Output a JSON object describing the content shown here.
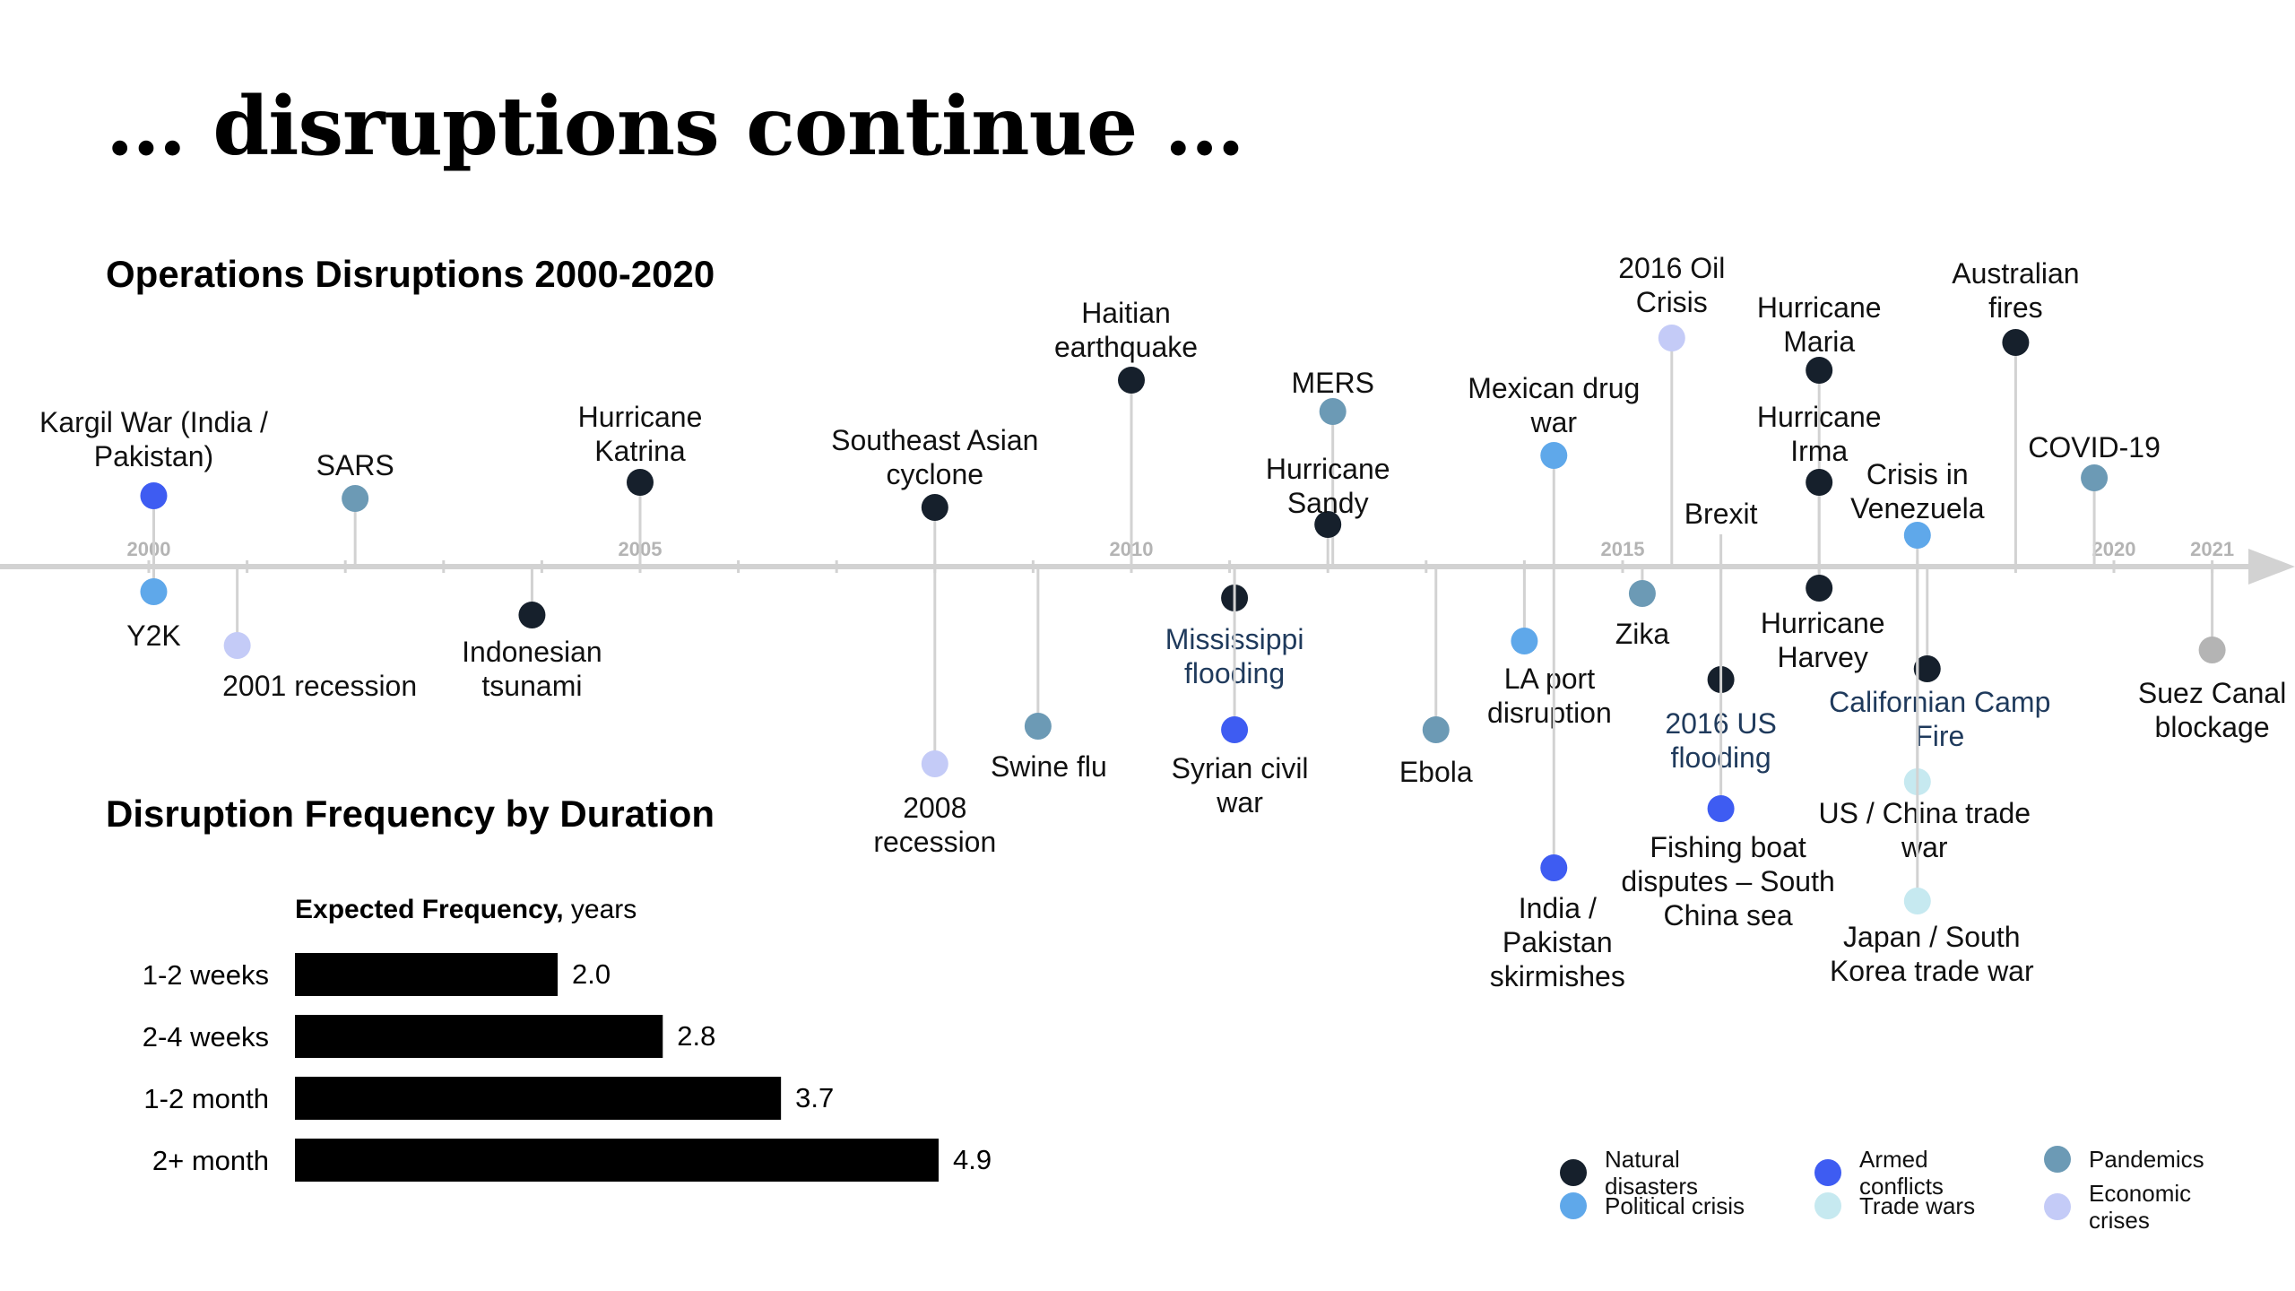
{
  "page": {
    "title": "… disruptions continue …"
  },
  "colors": {
    "natural": "#16202c",
    "political": "#5fa8ea",
    "armed": "#3e5cf2",
    "trade": "#c6e9f0",
    "pandemic": "#6c9ab5",
    "economic": "#c4cbf7",
    "other": "#b4b4b4",
    "axis": "#d2d2d2",
    "tick_label": "#b4b4b4"
  },
  "chart_data": [
    {
      "type": "timeline",
      "title": "Operations Disruptions 2000-2020",
      "year_labels": [
        "2000",
        "2005",
        "2010",
        "2015",
        "2020",
        "2021"
      ],
      "events": [
        {
          "label": "Kargil War (India / Pakistan)",
          "year": 2000.05,
          "category": "armed",
          "side": "above"
        },
        {
          "label": "Y2K",
          "year": 2000.05,
          "category": "political",
          "side": "below"
        },
        {
          "label": "2001 recession",
          "year": 2000.9,
          "category": "economic",
          "side": "below"
        },
        {
          "label": "SARS",
          "year": 2002.1,
          "category": "pandemic",
          "side": "above"
        },
        {
          "label": "Indonesian tsunami",
          "year": 2003.9,
          "category": "natural",
          "side": "below"
        },
        {
          "label": "Hurricane Katrina",
          "year": 2005.0,
          "category": "natural",
          "side": "above"
        },
        {
          "label": "Southeast Asian cyclone",
          "year": 2008.0,
          "category": "natural",
          "side": "above"
        },
        {
          "label": "2008 recession",
          "year": 2008.0,
          "category": "economic",
          "side": "below"
        },
        {
          "label": "Swine flu",
          "year": 2009.05,
          "category": "pandemic",
          "side": "below"
        },
        {
          "label": "Haitian earthquake",
          "year": 2010.0,
          "category": "natural",
          "side": "above"
        },
        {
          "label": "Mississippi flooding",
          "year": 2011.05,
          "category": "natural",
          "side": "below"
        },
        {
          "label": "Syrian civil war",
          "year": 2011.05,
          "category": "armed",
          "side": "below"
        },
        {
          "label": "MERS",
          "year": 2012.05,
          "category": "pandemic",
          "side": "above"
        },
        {
          "label": "Hurricane Sandy",
          "year": 2012.0,
          "category": "natural",
          "side": "above"
        },
        {
          "label": "Ebola",
          "year": 2013.1,
          "category": "pandemic",
          "side": "below"
        },
        {
          "label": "LA port disruption",
          "year": 2014.0,
          "category": "political",
          "side": "below"
        },
        {
          "label": "Mexican drug war",
          "year": 2014.3,
          "category": "political",
          "side": "above"
        },
        {
          "label": "India / Pakistan skirmishes",
          "year": 2014.3,
          "category": "armed",
          "side": "below"
        },
        {
          "label": "Zika",
          "year": 2015.2,
          "category": "pandemic",
          "side": "below"
        },
        {
          "label": "2016 Oil Crisis",
          "year": 2015.5,
          "category": "economic",
          "side": "above"
        },
        {
          "label": "Brexit",
          "year": 2016.0,
          "category": "political",
          "side": "above"
        },
        {
          "label": "2016 US flooding",
          "year": 2016.0,
          "category": "natural",
          "side": "below"
        },
        {
          "label": "Fishing boat disputes – South China sea",
          "year": 2016.0,
          "category": "armed",
          "side": "below"
        },
        {
          "label": "Hurricane Maria",
          "year": 2017.0,
          "category": "natural",
          "side": "above"
        },
        {
          "label": "Hurricane Irma",
          "year": 2017.0,
          "category": "natural",
          "side": "above"
        },
        {
          "label": "Hurricane Harvey",
          "year": 2017.0,
          "category": "natural",
          "side": "below"
        },
        {
          "label": "Crisis in Venezuela",
          "year": 2018.0,
          "category": "political",
          "side": "above"
        },
        {
          "label": "Californian Camp Fire",
          "year": 2018.1,
          "category": "natural",
          "side": "below"
        },
        {
          "label": "US / China trade war",
          "year": 2018.0,
          "category": "trade",
          "side": "below"
        },
        {
          "label": "Japan / South Korea trade war",
          "year": 2018.0,
          "category": "trade",
          "side": "below"
        },
        {
          "label": "Australian fires",
          "year": 2019.0,
          "category": "natural",
          "side": "above"
        },
        {
          "label": "COVID-19",
          "year": 2019.8,
          "category": "pandemic",
          "side": "above"
        },
        {
          "label": "Suez Canal blockage",
          "year": 2021.0,
          "category": "other",
          "side": "below"
        }
      ]
    },
    {
      "type": "bar",
      "title": "Disruption Frequency by Duration",
      "axis_label_bold": "Expected Frequency,",
      "axis_label_normal": " years",
      "categories": [
        "1-2 weeks",
        "2-4 weeks",
        "1-2 month",
        "2+ month"
      ],
      "values": [
        2.0,
        2.8,
        3.7,
        4.9
      ],
      "value_labels": [
        "2.0",
        "2.8",
        "3.7",
        "4.9"
      ],
      "xlim": [
        0,
        4.9
      ]
    }
  ],
  "legend": [
    {
      "key": "natural",
      "label": "Natural\ndisasters"
    },
    {
      "key": "armed",
      "label": "Armed\nconflicts"
    },
    {
      "key": "pandemic",
      "label": "Pandemics"
    },
    {
      "key": "political",
      "label": "Political crisis"
    },
    {
      "key": "trade",
      "label": "Trade wars"
    },
    {
      "key": "economic",
      "label": "Economic\ncrises"
    }
  ]
}
